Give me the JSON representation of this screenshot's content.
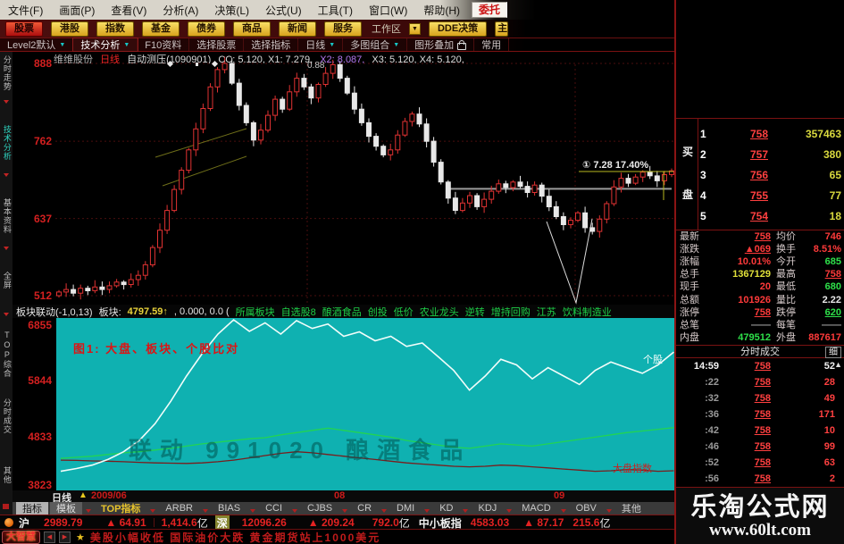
{
  "icons": {
    "dropdown": "▼",
    "scroll_up": "▲",
    "prev": "◀",
    "next": "▶",
    "star": "★",
    "warning": "▲"
  },
  "menu": {
    "items": [
      "文件(F)",
      "画面(P)",
      "查看(V)",
      "分析(A)",
      "决策(L)",
      "公式(U)",
      "工具(T)",
      "窗口(W)",
      "帮助(H)"
    ],
    "broker": "委托"
  },
  "toolbar": {
    "buttons": [
      "股票",
      "港股",
      "指数",
      "基金",
      "债券",
      "商品",
      "新闻",
      "服务"
    ],
    "workspace": "工作区",
    "dde": "DDE决策",
    "partial": "主"
  },
  "navbar": {
    "items": [
      "Level2默认",
      "技术分析",
      "F10资料",
      "选择股票",
      "选择指标",
      "日线",
      "多图组合",
      "图形叠加",
      "常用"
    ]
  },
  "sidebar": {
    "items": [
      "分时走势",
      "技术分析",
      "基本资料",
      "全屏",
      "TOP综合",
      "分时成交",
      "其他"
    ]
  },
  "chart": {
    "name": "维维股份",
    "period": "日线",
    "study": "自动测压(1090901)",
    "params1": "CC: 5.120, X1: 7.279,",
    "params2": "X2: 8.087,",
    "params3": "X3: 5.120, X4: 5.120,",
    "marker_label": "0.88",
    "y_labels": [
      "888",
      "762",
      "637",
      "512"
    ]
  },
  "indicator": {
    "formula": "板块联动(-1,0,13)",
    "label": "板块:",
    "value": "4797.59↑",
    "rest": ", 0.000, 0.0 (",
    "links": [
      "所属板块",
      "自选股8",
      "酿酒食品",
      "创投",
      "低价",
      "农业龙头",
      "逆转",
      "增持回购",
      "江苏",
      "饮料制造业"
    ],
    "y_labels": [
      "6855",
      "5844",
      "4833",
      "3823"
    ],
    "fig_title": "图1: 大盘、板块、个股比对",
    "watermark": "联动 991020 酿酒食品",
    "label_stock": "个股",
    "label_index": "大盘指数"
  },
  "dates": {
    "period": "日线",
    "d1": "2009/06",
    "d2": "08",
    "d3": "09"
  },
  "tabs": [
    "指标",
    "模板",
    "TOP指标",
    "ARBR",
    "BIAS",
    "CCI",
    "CJBS",
    "CR",
    "DMI",
    "KD",
    "KDJ",
    "MACD",
    "OBV",
    "其他"
  ],
  "status": {
    "sh_label": "沪",
    "sh_index": "2989.79",
    "sh_chg": "▲ 64.91",
    "sh_amt": "1,414.6",
    "sz_label": "深",
    "sz_index": "12096.26",
    "sz_chg": "▲ 209.24",
    "sz_amt": "792.0",
    "zxb_label": "中小板指",
    "zxb_index": "4583.03",
    "zxb_chg": "▲ 87.17",
    "zxb_amt": "215.6",
    "unit": "亿"
  },
  "news": {
    "logo": "大智慧",
    "text": "美股小幅收低 国际油价大跌 黄金期货站上1000美元"
  },
  "order_book": {
    "side_top": "买",
    "side_bottom": "盘",
    "rows": [
      {
        "n": "1",
        "price": "758",
        "vol": "357463"
      },
      {
        "n": "2",
        "price": "757",
        "vol": "380"
      },
      {
        "n": "3",
        "price": "756",
        "vol": "65"
      },
      {
        "n": "4",
        "price": "755",
        "vol": "77"
      },
      {
        "n": "5",
        "price": "754",
        "vol": "18"
      }
    ]
  },
  "quote": {
    "rows": [
      {
        "l1": "最新",
        "v1": "758",
        "l2": "均价",
        "v2": "746"
      },
      {
        "l1": "涨跌",
        "v1": "▲069",
        "l2": "换手",
        "v2": "8.51%"
      },
      {
        "l1": "涨幅",
        "v1": "10.01%",
        "l2": "今开",
        "v2": "685"
      },
      {
        "l1": "总手",
        "v1": "1367129",
        "l2": "最高",
        "v2": "758"
      },
      {
        "l1": "现手",
        "v1": "20",
        "l2": "最低",
        "v2": "680"
      },
      {
        "l1": "总额",
        "v1": "101926",
        "l2": "量比",
        "v2": "2.22"
      },
      {
        "l1": "涨停",
        "v1": "758",
        "l2": "跌停",
        "v2": "620"
      },
      {
        "l1": "总笔",
        "v1": "——",
        "l2": "每笔",
        "v2": "——"
      },
      {
        "l1": "内盘",
        "v1": "479512",
        "l2": "外盘",
        "v2": "887617"
      }
    ]
  },
  "ticks": {
    "title": "分时成交",
    "detail": "细",
    "rows": [
      {
        "t": "14:59",
        "p": "758",
        "v": "52"
      },
      {
        "t": ":22",
        "p": "758",
        "v": "28"
      },
      {
        "t": ":32",
        "p": "758",
        "v": "49"
      },
      {
        "t": ":36",
        "p": "758",
        "v": "171"
      },
      {
        "t": ":42",
        "p": "758",
        "v": "10"
      },
      {
        "t": ":46",
        "p": "758",
        "v": "99"
      },
      {
        "t": ":52",
        "p": "758",
        "v": "63"
      },
      {
        "t": ":56",
        "p": "758",
        "v": "2"
      }
    ]
  },
  "watermark": {
    "line1": "乐淘公式网",
    "line2": "www.60lt.com"
  },
  "chart_data": {
    "main_chart": {
      "type": "candlestick",
      "ylabel": "price(x100)",
      "y_ticks": [
        888,
        762,
        637,
        512
      ],
      "support_line_price": 685,
      "annotation": "① 7.28 17.40%",
      "closes": [
        518,
        522,
        516,
        524,
        520,
        526,
        522,
        528,
        534,
        530,
        538,
        545,
        562,
        590,
        618,
        650,
        684,
        715,
        748,
        782,
        815,
        850,
        878,
        888,
        856,
        820,
        792,
        764,
        780,
        804,
        830,
        814,
        842,
        864,
        850,
        832,
        854,
        872,
        886,
        864,
        840,
        814,
        792,
        770,
        754,
        740,
        748,
        772,
        794,
        806,
        790,
        762,
        728,
        696,
        670,
        650,
        662,
        674,
        656,
        668,
        681,
        693,
        687,
        696,
        689,
        679,
        691,
        673,
        656,
        640,
        627,
        634,
        646,
        622,
        616,
        636,
        661,
        688,
        702,
        694,
        704,
        712,
        706,
        698,
        708,
        714
      ]
    },
    "indicator_chart": {
      "type": "line",
      "y_ticks": [
        6855,
        5844,
        4833,
        3823
      ],
      "background": "#0fb1b1",
      "series": [
        {
          "name": "大盘指数",
          "color": "#7a1d1d",
          "values": [
            4350,
            4345,
            4335,
            4330,
            4320,
            4310,
            4300,
            4295,
            4290,
            4300,
            4320,
            4350,
            4390,
            4430,
            4470,
            4500,
            4480,
            4450,
            4420,
            4390,
            4360,
            4330,
            4300,
            4280,
            4260,
            4240,
            4230,
            4240,
            4260,
            4250,
            4230,
            4210,
            4190,
            4170,
            4150,
            4160,
            4180,
            4170,
            4150,
            4160
          ]
        },
        {
          "name": "板块",
          "color": "#22d452",
          "values": [
            4380,
            4400,
            4420,
            4450,
            4480,
            4500,
            4530,
            4560,
            4600,
            4640,
            4670,
            4700,
            4730,
            4750,
            4800,
            4840,
            4880,
            4920,
            4880,
            4840,
            4800,
            4760,
            4700,
            4660,
            4620,
            4580,
            4560,
            4600,
            4640,
            4620,
            4600,
            4640,
            4680,
            4720,
            4760,
            4800,
            4840,
            4870,
            4900,
            4930
          ]
        },
        {
          "name": "个股",
          "color": "#f2fdfa",
          "values": [
            4150,
            4200,
            4260,
            4360,
            4500,
            4700,
            5000,
            5400,
            5850,
            6250,
            6600,
            6855,
            6650,
            6800,
            6600,
            6840,
            6700,
            6780,
            6560,
            6640,
            6480,
            6560,
            6380,
            6440,
            6200,
            5950,
            5600,
            5850,
            6150,
            6050,
            5800,
            6000,
            5850,
            5700,
            5950,
            6100,
            6000,
            5900,
            6050,
            6280
          ]
        }
      ]
    }
  }
}
